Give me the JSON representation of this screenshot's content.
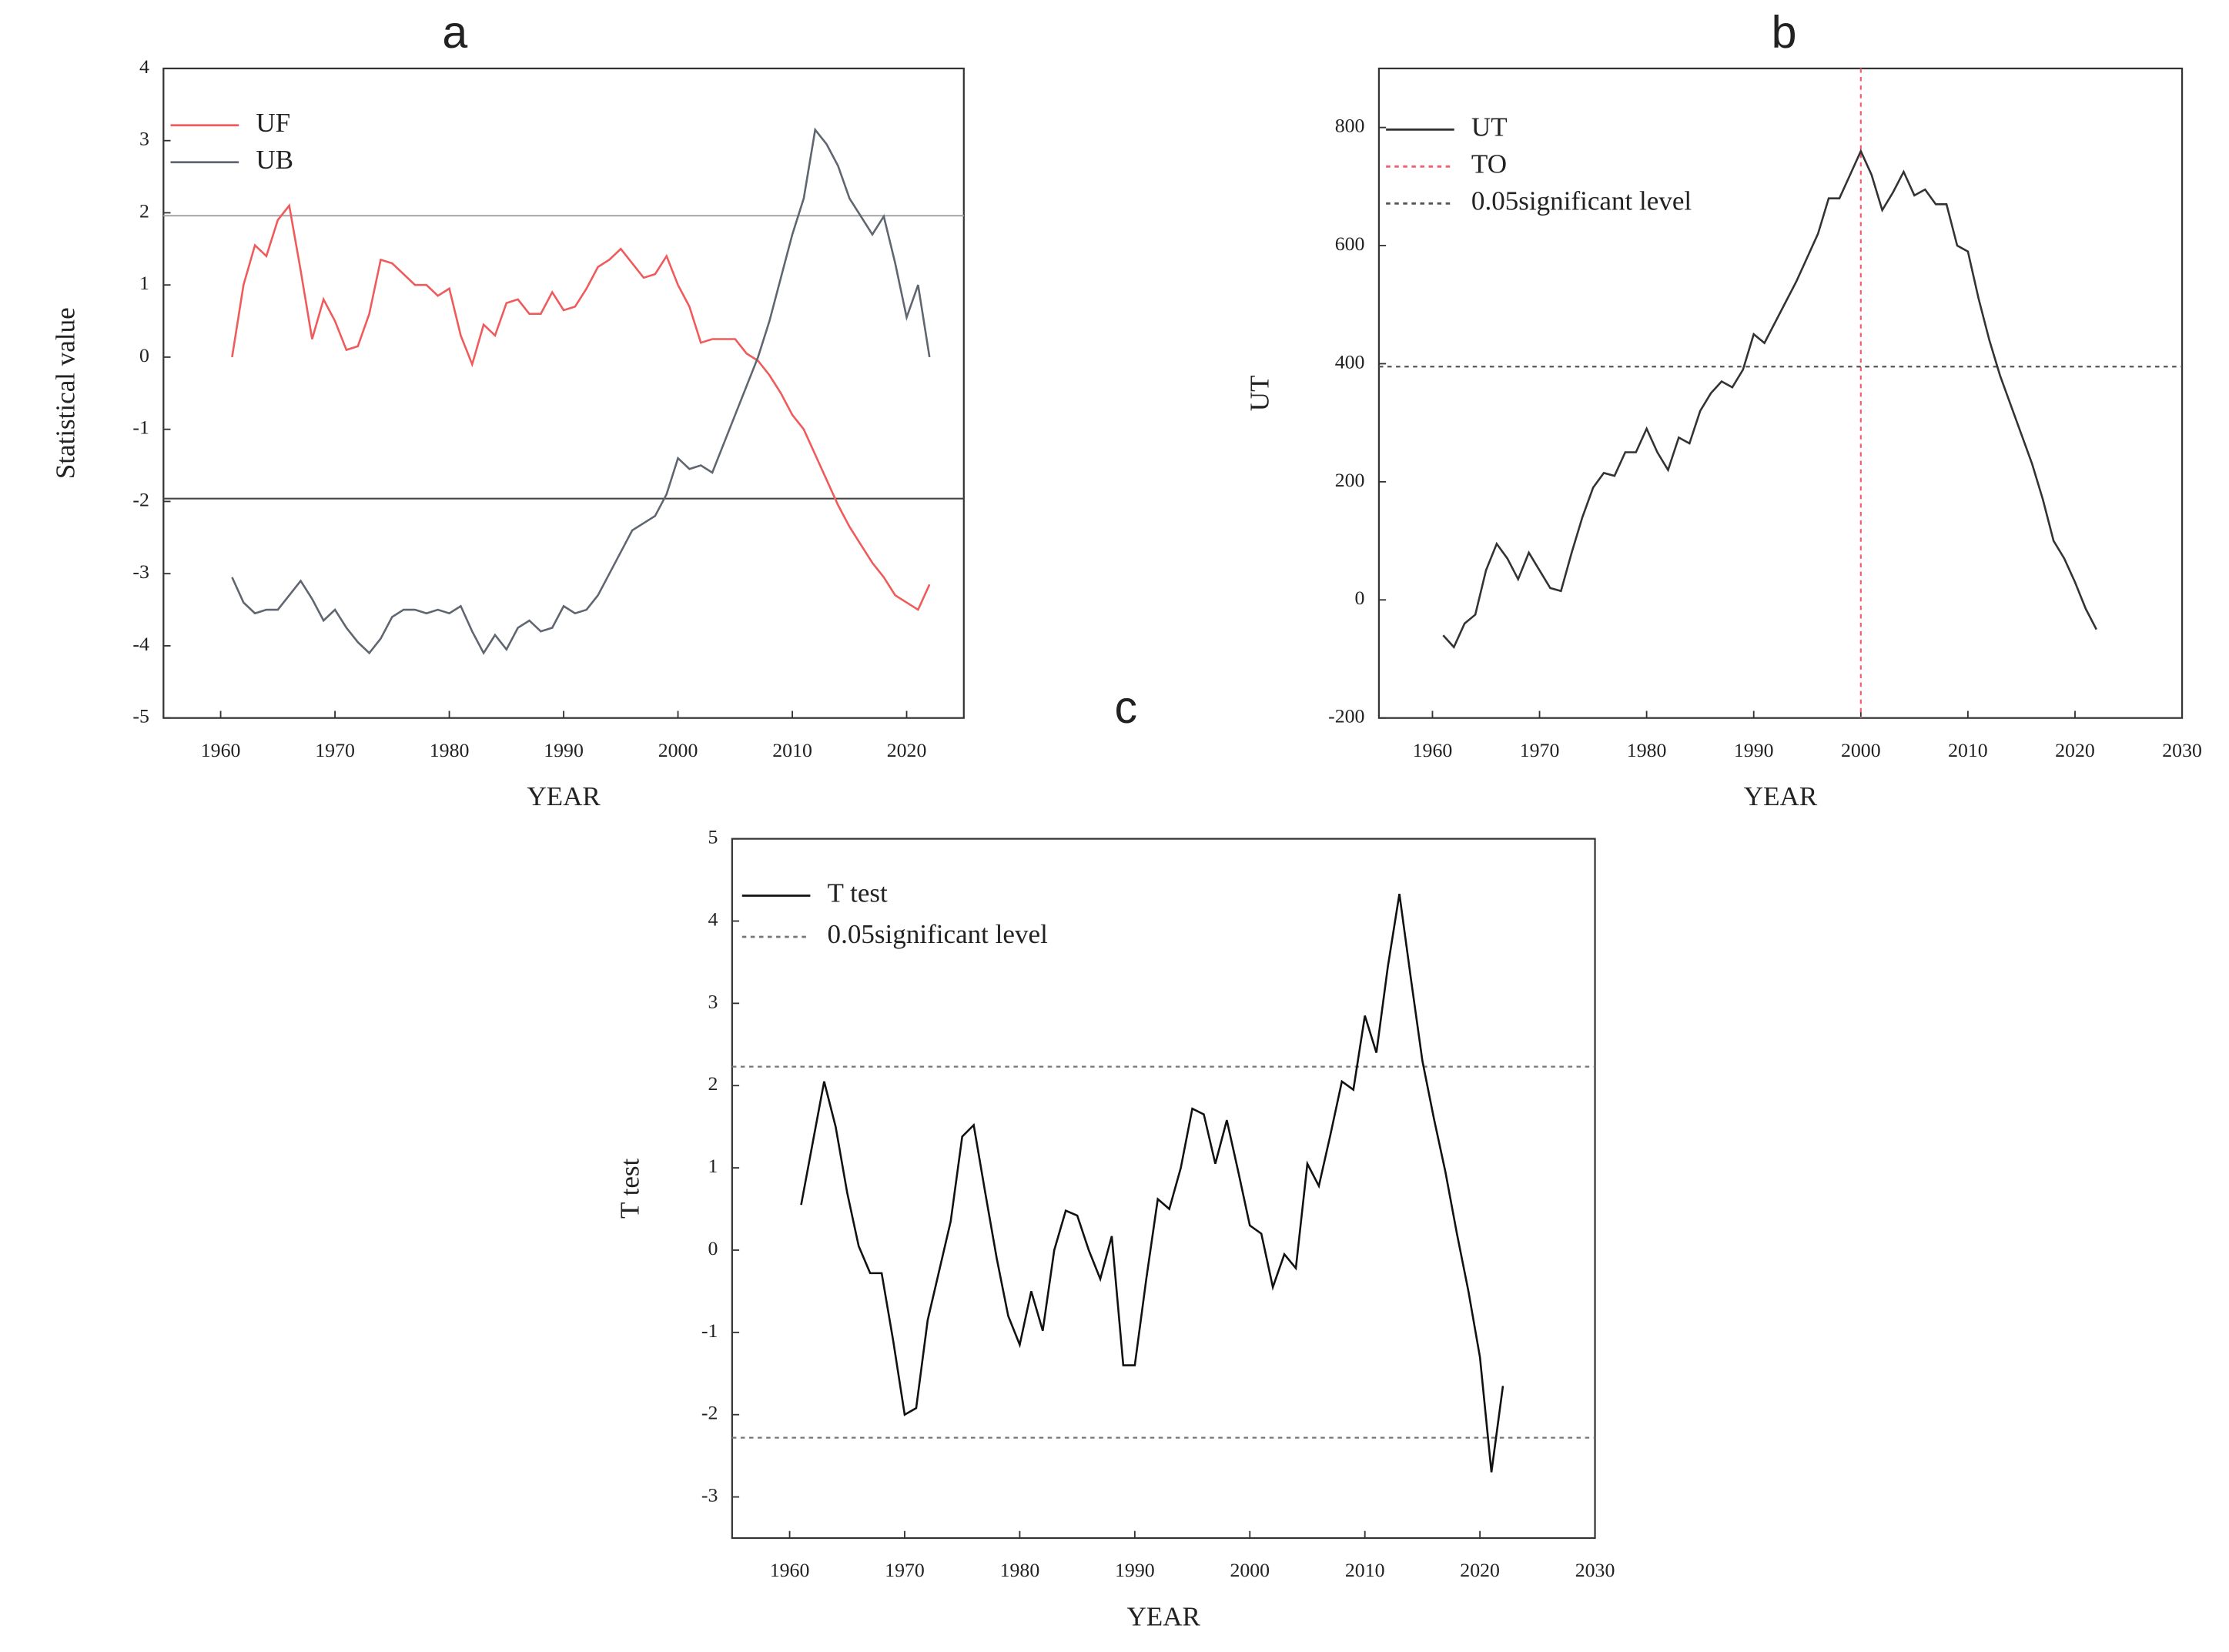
{
  "chart_data": [
    {
      "type": "line",
      "title": "a",
      "xlabel": "YEAR",
      "ylabel": "Statistical value",
      "x": [
        1961,
        1962,
        1963,
        1964,
        1965,
        1966,
        1967,
        1968,
        1969,
        1970,
        1971,
        1972,
        1973,
        1974,
        1975,
        1976,
        1977,
        1978,
        1979,
        1980,
        1981,
        1982,
        1983,
        1984,
        1985,
        1986,
        1987,
        1988,
        1989,
        1990,
        1991,
        1992,
        1993,
        1994,
        1995,
        1996,
        1997,
        1998,
        1999,
        2000,
        2001,
        2002,
        2003,
        2004,
        2005,
        2006,
        2007,
        2008,
        2009,
        2010,
        2011,
        2012,
        2013,
        2014,
        2015,
        2016,
        2017,
        2018,
        2019,
        2020,
        2021,
        2022
      ],
      "series": [
        {
          "name": "UF",
          "color": "#f05a5a",
          "values": [
            0,
            1.0,
            1.55,
            1.4,
            1.9,
            2.1,
            1.2,
            0.25,
            0.8,
            0.5,
            0.1,
            0.15,
            0.6,
            1.35,
            1.3,
            1.15,
            1.0,
            1.0,
            0.85,
            0.95,
            0.3,
            -0.1,
            0.45,
            0.3,
            0.75,
            0.8,
            0.6,
            0.6,
            0.9,
            0.65,
            0.7,
            0.95,
            1.25,
            1.35,
            1.5,
            1.3,
            1.1,
            1.15,
            1.4,
            1.0,
            0.7,
            0.2,
            0.25,
            0.25,
            0.25,
            0.05,
            -0.05,
            -0.25,
            -0.5,
            -0.8,
            -1.0,
            -1.35,
            -1.7,
            -2.05,
            -2.35,
            -2.6,
            -2.85,
            -3.05,
            -3.3,
            -3.4,
            -3.5,
            -3.15
          ]
        },
        {
          "name": "UB",
          "color": "#5f6670",
          "values": [
            -3.05,
            -3.4,
            -3.55,
            -3.5,
            -3.5,
            -3.3,
            -3.1,
            -3.35,
            -3.65,
            -3.5,
            -3.75,
            -3.95,
            -4.1,
            -3.9,
            -3.6,
            -3.5,
            -3.5,
            -3.55,
            -3.5,
            -3.55,
            -3.45,
            -3.8,
            -4.1,
            -3.85,
            -4.05,
            -3.75,
            -3.65,
            -3.8,
            -3.75,
            -3.45,
            -3.55,
            -3.5,
            -3.3,
            -3.0,
            -2.7,
            -2.4,
            -2.3,
            -2.2,
            -1.9,
            -1.4,
            -1.55,
            -1.5,
            -1.6,
            -1.2,
            -0.8,
            -0.4,
            0.0,
            0.5,
            1.1,
            1.7,
            2.2,
            3.15,
            2.95,
            2.65,
            2.2,
            1.95,
            1.7,
            1.95,
            1.3,
            0.55,
            1.0,
            0.0
          ]
        }
      ],
      "reference_lines": [
        {
          "orientation": "horizontal",
          "color": "#aaaaaa",
          "values": [
            1.96
          ]
        },
        {
          "orientation": "horizontal",
          "color": "#444444",
          "values": [
            -1.96
          ]
        }
      ],
      "xlim": [
        1955,
        2025
      ],
      "xticks": [
        1960,
        1970,
        1980,
        1990,
        2000,
        2010,
        2020
      ],
      "ylim": [
        -5,
        4
      ],
      "yticks": [
        -5,
        -4,
        -3,
        -2,
        -1,
        0,
        1,
        2,
        3,
        4
      ]
    },
    {
      "type": "line",
      "title": "b",
      "xlabel": "YEAR",
      "ylabel": "UT",
      "x": [
        1961,
        1962,
        1963,
        1964,
        1965,
        1966,
        1967,
        1968,
        1969,
        1970,
        1971,
        1972,
        1973,
        1974,
        1975,
        1976,
        1977,
        1978,
        1979,
        1980,
        1981,
        1982,
        1983,
        1984,
        1985,
        1986,
        1987,
        1988,
        1989,
        1990,
        1991,
        1992,
        1993,
        1994,
        1995,
        1996,
        1997,
        1998,
        1999,
        2000,
        2001,
        2002,
        2003,
        2004,
        2005,
        2006,
        2007,
        2008,
        2009,
        2010,
        2011,
        2012,
        2013,
        2014,
        2015,
        2016,
        2017,
        2018,
        2019,
        2020,
        2021,
        2022
      ],
      "series": [
        {
          "name": "UT",
          "color": "#333333",
          "values": [
            -60,
            -80,
            -40,
            -25,
            50,
            95,
            70,
            35,
            80,
            50,
            20,
            15,
            80,
            140,
            190,
            215,
            210,
            250,
            250,
            290,
            250,
            220,
            275,
            265,
            320,
            350,
            370,
            360,
            390,
            450,
            435,
            470,
            505,
            540,
            580,
            620,
            680,
            680,
            720,
            760,
            720,
            660,
            690,
            725,
            685,
            695,
            670,
            670,
            600,
            590,
            510,
            440,
            380,
            330,
            280,
            230,
            170,
            100,
            70,
            30,
            -15,
            -50
          ]
        }
      ],
      "reference_lines": [
        {
          "name": "TO",
          "orientation": "vertical",
          "color": "#f06070",
          "values": [
            2000
          ]
        },
        {
          "name": "0.05significant level",
          "orientation": "horizontal",
          "color": "#555555",
          "values": [
            395
          ]
        }
      ],
      "xlim": [
        1955,
        2030
      ],
      "xticks": [
        1960,
        1970,
        1980,
        1990,
        2000,
        2010,
        2020,
        2030
      ],
      "ylim": [
        -200,
        900
      ],
      "yticks": [
        -200,
        0,
        200,
        400,
        600,
        800
      ]
    },
    {
      "type": "line",
      "title": "c",
      "xlabel": "YEAR",
      "ylabel": "T test",
      "x": [
        1961,
        1962,
        1963,
        1964,
        1965,
        1966,
        1967,
        1968,
        1969,
        1970,
        1971,
        1972,
        1973,
        1974,
        1975,
        1976,
        1977,
        1978,
        1979,
        1980,
        1981,
        1982,
        1983,
        1984,
        1985,
        1986,
        1987,
        1988,
        1989,
        1990,
        1991,
        1992,
        1993,
        1994,
        1995,
        1996,
        1997,
        1998,
        1999,
        2000,
        2001,
        2002,
        2003,
        2004,
        2005,
        2006,
        2007,
        2008,
        2009,
        2010,
        2011,
        2012,
        2013,
        2014,
        2015,
        2016,
        2017,
        2018,
        2019,
        2020,
        2021,
        2022
      ],
      "series": [
        {
          "name": "T test",
          "color": "#111111",
          "values": [
            0.55,
            1.3,
            2.05,
            1.5,
            0.7,
            0.05,
            -0.28,
            -0.28,
            -1.1,
            -2.0,
            -1.92,
            -0.85,
            -0.25,
            0.35,
            1.38,
            1.52,
            0.7,
            -0.1,
            -0.8,
            -1.15,
            -0.5,
            -0.98,
            0.0,
            0.48,
            0.42,
            0.0,
            -0.35,
            0.17,
            -1.4,
            -1.4,
            -0.35,
            0.62,
            0.5,
            1.0,
            1.72,
            1.65,
            1.05,
            1.58,
            0.95,
            0.3,
            0.2,
            -0.45,
            -0.05,
            -0.22,
            1.05,
            0.78,
            1.4,
            2.05,
            1.95,
            2.85,
            2.4,
            3.45,
            4.33,
            3.3,
            2.3,
            1.6,
            0.95,
            0.2,
            -0.5,
            -1.3,
            -2.7,
            -1.65
          ]
        }
      ],
      "reference_lines": [
        {
          "name": "0.05significant level",
          "orientation": "horizontal",
          "color": "#777777",
          "values": [
            2.23,
            -2.28
          ]
        }
      ],
      "xlim": [
        1955,
        2030
      ],
      "xticks": [
        1960,
        1970,
        1980,
        1990,
        2000,
        2010,
        2020,
        2030
      ],
      "ylim": [
        -3.5,
        5
      ],
      "yticks": [
        -3,
        -2,
        -1,
        0,
        1,
        2,
        3,
        4,
        5
      ]
    }
  ]
}
